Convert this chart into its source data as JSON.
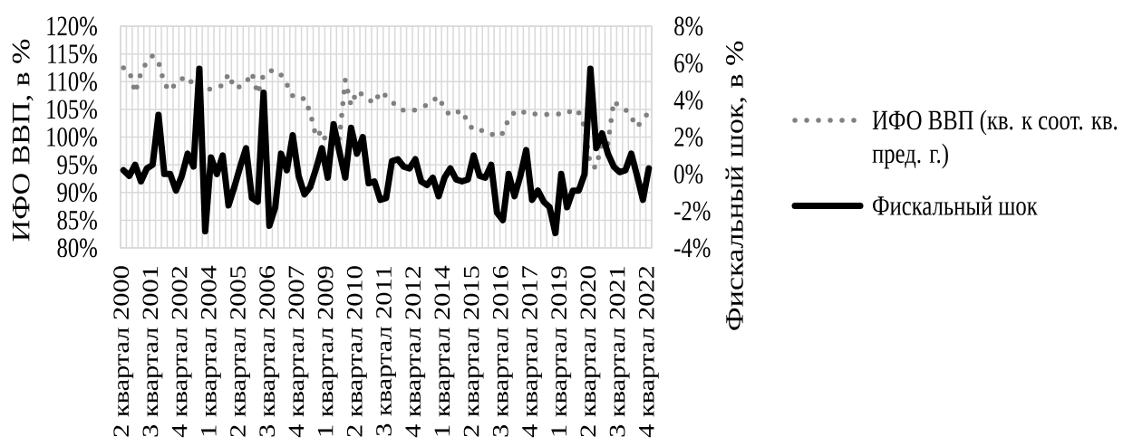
{
  "chart_data": {
    "type": "line",
    "categories": [
      "2 квартал 2000",
      null,
      null,
      null,
      null,
      "3 квартал 2001",
      null,
      null,
      null,
      null,
      "4 квартал 2002",
      null,
      null,
      null,
      null,
      "1 квартал 2004",
      null,
      null,
      null,
      null,
      "2 квартал 2005",
      null,
      null,
      null,
      null,
      "3 квартал 2006",
      null,
      null,
      null,
      null,
      "4 квартал 2007",
      null,
      null,
      null,
      null,
      "1 квартал 2009",
      null,
      null,
      null,
      null,
      "2 квартал 2010",
      null,
      null,
      null,
      null,
      "3 квартал 2011",
      null,
      null,
      null,
      null,
      "4 квартал 2012",
      null,
      null,
      null,
      null,
      "1 квартал 2014",
      null,
      null,
      null,
      null,
      "2 квартал 2015",
      null,
      null,
      null,
      null,
      "3 квартал 2016",
      null,
      null,
      null,
      null,
      "4 квартал 2017",
      null,
      null,
      null,
      null,
      "1 квартал 2019",
      null,
      null,
      null,
      null,
      "2 квартал 2020",
      null,
      null,
      null,
      null,
      "3 квартал 2021",
      null,
      null,
      null,
      null,
      "4 квартал 2022"
    ],
    "series": [
      {
        "name": "ИФО ВВП (кв. к соот. кв. пред. г.)",
        "color": "#808080",
        "line_style": "dotted",
        "values": [
          112.5,
          112.0,
          108.0,
          111.6,
          113.6,
          114.7,
          113.6,
          109.6,
          108.3,
          109.8,
          110.5,
          110.9,
          109.3,
          108.5,
          108.1,
          108.8,
          109.1,
          109.3,
          111.4,
          108.8,
          109.1,
          109.8,
          111.6,
          107.8,
          111.3,
          111.9,
          112.1,
          111.2,
          109.5,
          107.4,
          106.8,
          107.0,
          104.4,
          100.0,
          101.2,
          98.3,
          98.5,
          99.8,
          110.3,
          105.7,
          108.3,
          107.6,
          106.8,
          106.1,
          108.2,
          107.4,
          106.4,
          105.4,
          104.8,
          104.6,
          104.9,
          105.3,
          105.8,
          106.6,
          107.3,
          105.0,
          103.9,
          104.4,
          104.8,
          102.6,
          101.2,
          101.2,
          101.2,
          100.6,
          100.0,
          100.7,
          103.3,
          104.5,
          104.9,
          104.2,
          104.1,
          104.2,
          104.1,
          104.1,
          104.1,
          104.2,
          104.2,
          105.1,
          104.4,
          101.8,
          94.8,
          94.5,
          99.3,
          98.8,
          106.5,
          105.5,
          105.0,
          103.6,
          101.8,
          103.2,
          104.5
        ]
      },
      {
        "name": "Фискальный шок",
        "color": "#000000",
        "line_style": "solid",
        "axis": "y2",
        "values": [
          0.2,
          -0.1,
          0.5,
          -0.4,
          0.3,
          0.5,
          3.2,
          0.0,
          0.0,
          -0.9,
          -0.1,
          1.1,
          0.4,
          5.7,
          -3.1,
          0.9,
          0.0,
          1.0,
          -1.7,
          -0.7,
          0.4,
          1.4,
          -1.3,
          -1.5,
          4.4,
          -2.8,
          -1.8,
          1.1,
          0.2,
          2.1,
          -0.1,
          -1.1,
          -0.7,
          0.3,
          1.4,
          -0.2,
          2.7,
          1.2,
          -0.2,
          2.5,
          1.1,
          2.0,
          -0.5,
          -0.4,
          -1.4,
          -1.3,
          0.7,
          0.8,
          0.4,
          0.3,
          0.8,
          -0.4,
          -0.6,
          -0.2,
          -1.2,
          -0.2,
          0.3,
          -0.3,
          -0.4,
          -0.3,
          1.0,
          -0.1,
          -0.2,
          0.5,
          -2.1,
          -2.5,
          0.0,
          -1.2,
          -0.1,
          1.3,
          -1.4,
          -0.9,
          -1.5,
          -1.8,
          -3.2,
          0.0,
          -1.8,
          -0.9,
          -0.9,
          0.0,
          5.7,
          1.4,
          2.2,
          1.1,
          0.4,
          0.1,
          0.2,
          1.1,
          -0.1,
          -1.4,
          0.3
        ]
      }
    ],
    "ylabel": "ИФО ВВП, в %",
    "y2label": "Фискальный шок, в %",
    "ylim": [
      80,
      120
    ],
    "yticks": [
      {
        "value": 80,
        "label": "80%"
      },
      {
        "value": 85,
        "label": "85%"
      },
      {
        "value": 90,
        "label": "90%"
      },
      {
        "value": 95,
        "label": "95%"
      },
      {
        "value": 100,
        "label": "100%"
      },
      {
        "value": 105,
        "label": "105%"
      },
      {
        "value": 110,
        "label": "110%"
      },
      {
        "value": 115,
        "label": "115%"
      },
      {
        "value": 120,
        "label": "120%"
      }
    ],
    "y2lim": [
      -4,
      8
    ],
    "y2ticks": [
      {
        "value": -4,
        "label": "-4%"
      },
      {
        "value": -2,
        "label": "-2%"
      },
      {
        "value": 0,
        "label": "0%"
      },
      {
        "value": 2,
        "label": "2%"
      },
      {
        "value": 4,
        "label": "4%"
      },
      {
        "value": 6,
        "label": "6%"
      },
      {
        "value": 8,
        "label": "8%"
      }
    ],
    "grid": true,
    "legend": "right"
  }
}
